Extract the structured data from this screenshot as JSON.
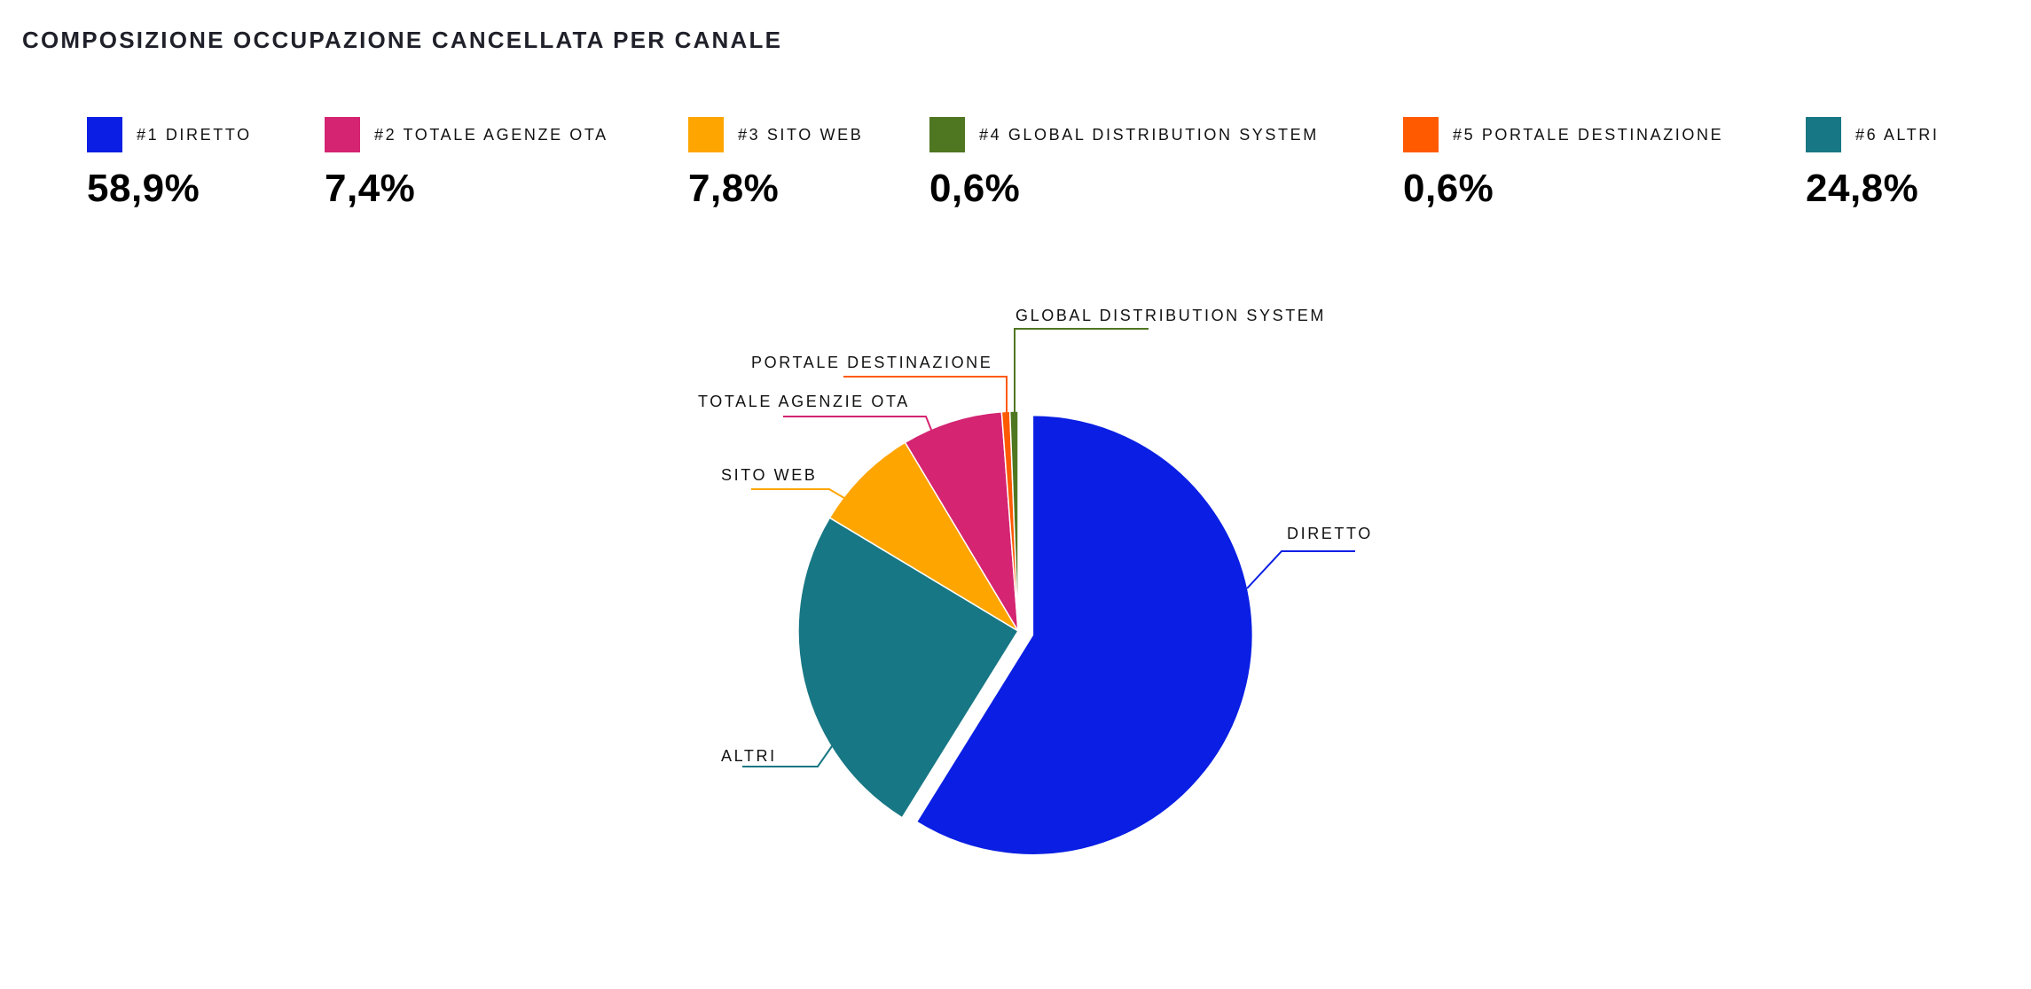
{
  "title": "COMPOSIZIONE OCCUPAZIONE CANCELLATA PER CANALE",
  "legend": [
    {
      "label": "#1 DIRETTO",
      "value": "58,9%",
      "color": "#0a1fe3"
    },
    {
      "label": "#2 TOTALE AGENZE OTA",
      "value": "7,4%",
      "color": "#d42472"
    },
    {
      "label": "#3 SITO WEB",
      "value": "7,8%",
      "color": "#ffa500"
    },
    {
      "label": "#4 GLOBAL DISTRIBUTION SYSTEM",
      "value": "0,6%",
      "color": "#4f7621"
    },
    {
      "label": "#5 PORTALE DESTINAZIONE",
      "value": "0,6%",
      "color": "#ff5a00"
    },
    {
      "label": "#6 ALTRI",
      "value": "24,8%",
      "color": "#187784"
    }
  ],
  "chart_data": {
    "type": "pie",
    "title": "COMPOSIZIONE OCCUPAZIONE CANCELLATA PER CANALE",
    "start": "top",
    "direction": "clockwise",
    "slices": [
      {
        "name": "DIRETTO",
        "value": 58.9,
        "color": "#0a1fe3",
        "exploded": true
      },
      {
        "name": "ALTRI",
        "value": 24.8,
        "color": "#187784",
        "exploded": false
      },
      {
        "name": "SITO WEB",
        "value": 7.8,
        "color": "#ffa500",
        "exploded": false
      },
      {
        "name": "TOTALE AGENZIE OTA",
        "value": 7.4,
        "color": "#d42472",
        "exploded": false
      },
      {
        "name": "PORTALE DESTINAZIONE",
        "value": 0.6,
        "color": "#ff5a00",
        "exploded": false
      },
      {
        "name": "GLOBAL DISTRIBUTION SYSTEM",
        "value": 0.6,
        "color": "#4f7621",
        "exploded": false
      }
    ]
  }
}
